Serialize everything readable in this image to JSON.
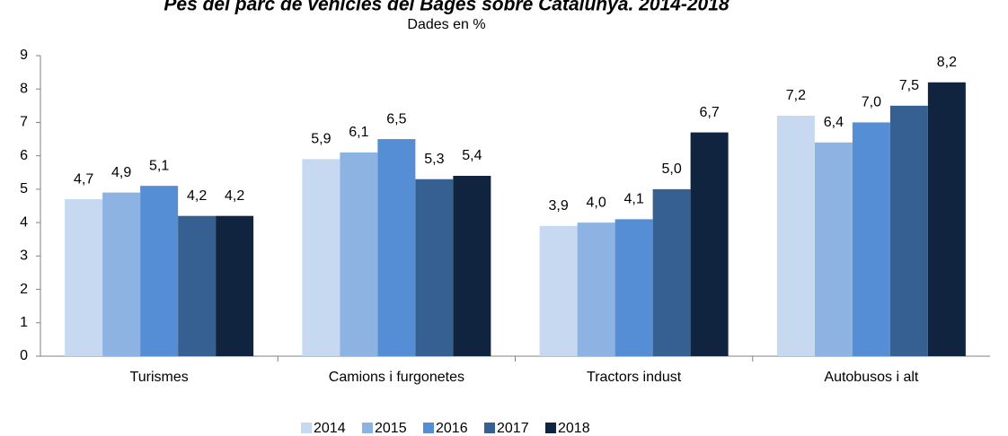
{
  "chart_data": {
    "type": "bar",
    "title": "Pes del parc de vehicles del Bages sobre Catalunya. 2014-2018",
    "subtitle": "Dades en %",
    "categories": [
      "Turismes",
      "Camions i furgonetes",
      "Tractors indust",
      "Autobusos i alt"
    ],
    "series": [
      {
        "name": "2014",
        "color": "#c6d9f1",
        "values": [
          4.7,
          5.9,
          3.9,
          7.2
        ],
        "value_labels": [
          "4,7",
          "5,9",
          "3,9",
          "7,2"
        ]
      },
      {
        "name": "2015",
        "color": "#8db3e2",
        "values": [
          4.9,
          6.1,
          4.0,
          6.4
        ],
        "value_labels": [
          "4,9",
          "6,1",
          "4,0",
          "6,4"
        ]
      },
      {
        "name": "2016",
        "color": "#558ed5",
        "values": [
          5.1,
          6.5,
          4.1,
          7.0
        ],
        "value_labels": [
          "5,1",
          "6,5",
          "4,1",
          "7,0"
        ]
      },
      {
        "name": "2017",
        "color": "#366092",
        "values": [
          4.2,
          5.3,
          5.0,
          7.5
        ],
        "value_labels": [
          "4,2",
          "5,3",
          "5,0",
          "7,5"
        ]
      },
      {
        "name": "2018",
        "color": "#10243f",
        "values": [
          4.2,
          5.4,
          6.7,
          8.2
        ],
        "value_labels": [
          "4,2",
          "5,4",
          "6,7",
          "8,2"
        ]
      }
    ],
    "ylim": [
      0,
      9
    ],
    "yticks": [
      0,
      1,
      2,
      3,
      4,
      5,
      6,
      7,
      8,
      9
    ],
    "legend": "bottom"
  }
}
